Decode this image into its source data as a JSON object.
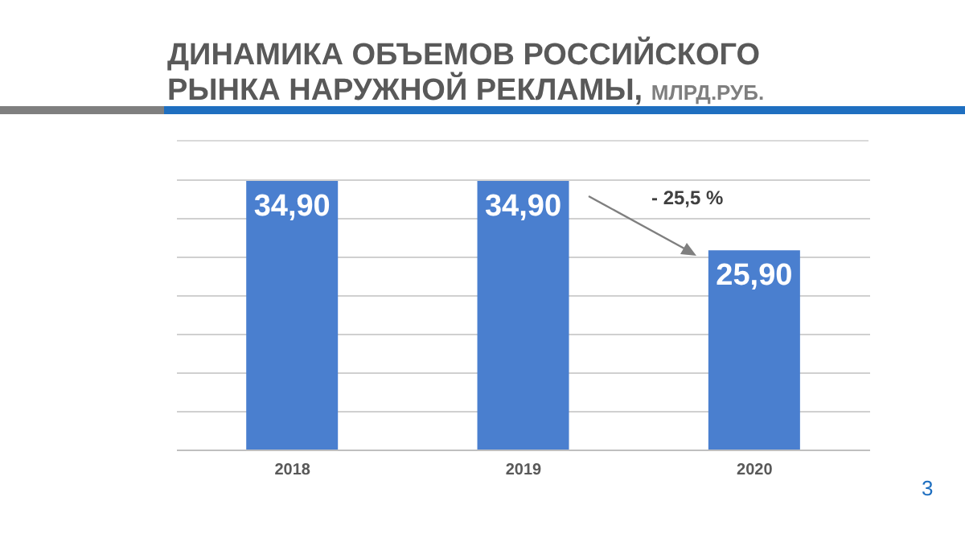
{
  "chart_data": {
    "type": "bar",
    "title": "ДИНАМИКА ОБЪЕМОВ РОССИЙСКОГО РЫНКА НАРУЖНОЙ РЕКЛАМЫ,",
    "subtitle": "МЛРД.РУБ.",
    "categories": [
      "2018",
      "2019",
      "2020"
    ],
    "values": [
      34.9,
      34.9,
      25.9
    ],
    "value_labels": [
      "34,90",
      "34,90",
      "25,90"
    ],
    "color": "#4a7fcf",
    "ylim": [
      0,
      35
    ],
    "yticks": [
      {
        "value": 0,
        "label": null
      },
      {
        "value": 5,
        "label": null
      },
      {
        "value": 10,
        "label": null
      },
      {
        "value": 15,
        "label": null
      },
      {
        "value": 20,
        "label": null
      },
      {
        "value": 25,
        "label": null
      },
      {
        "value": 30,
        "label": null
      },
      {
        "value": 35,
        "label": null
      }
    ],
    "tick_labels": "x",
    "grid": "y",
    "annotations": [
      "- 25,5 %",
      "3"
    ]
  }
}
